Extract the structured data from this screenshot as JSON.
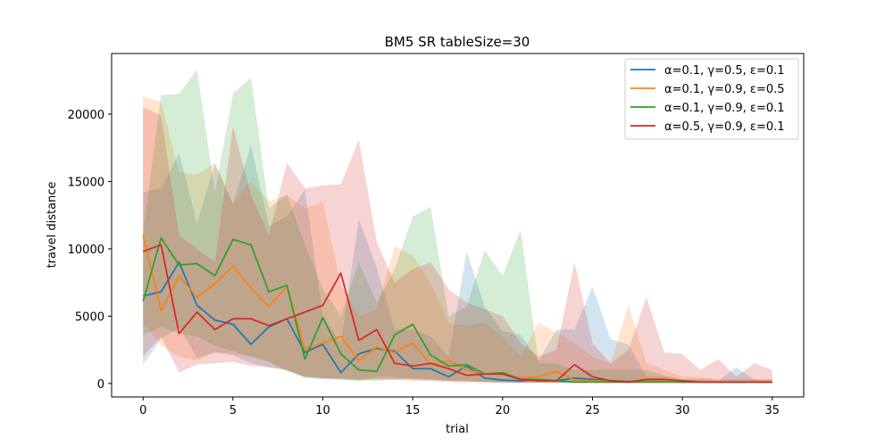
{
  "chart_data": {
    "type": "line",
    "title": "BM5  SR  tableSize=30",
    "xlabel": "trial",
    "ylabel": "travel distance",
    "xlim": [
      -1.75,
      36.75
    ],
    "ylim": [
      -1000,
      24500
    ],
    "xticks": [
      0,
      5,
      10,
      15,
      20,
      25,
      30,
      35
    ],
    "yticks": [
      0,
      5000,
      10000,
      15000,
      20000
    ],
    "legend_position": "top-right",
    "grid": false,
    "x": [
      0,
      1,
      2,
      3,
      4,
      5,
      6,
      7,
      8,
      9,
      10,
      11,
      12,
      13,
      14,
      15,
      16,
      17,
      18,
      19,
      20,
      21,
      22,
      23,
      24,
      25,
      26,
      27,
      28,
      29,
      30,
      31,
      32,
      33,
      34,
      35
    ],
    "series": [
      {
        "name": "α=0.1, γ=0.5, ε=0.1",
        "color": "#1f77b4",
        "mean": [
          6500,
          6800,
          9000,
          5800,
          4700,
          4400,
          2900,
          4200,
          4800,
          2300,
          2900,
          800,
          2200,
          2600,
          2400,
          1100,
          1100,
          500,
          1300,
          400,
          250,
          200,
          300,
          200,
          400,
          300,
          200,
          150,
          150,
          150,
          100,
          100,
          100,
          100,
          100,
          100
        ],
        "upper": [
          14200,
          14500,
          17100,
          11900,
          16300,
          13300,
          17700,
          11700,
          12400,
          14400,
          5000,
          3000,
          12200,
          8600,
          4000,
          4000,
          3500,
          2000,
          9800,
          5700,
          3900,
          3600,
          1700,
          4000,
          4000,
          7200,
          3300,
          2900,
          500,
          500,
          300,
          300,
          200,
          1200,
          300,
          200
        ],
        "lower": [
          1400,
          3300,
          4200,
          1900,
          2300,
          2100,
          1500,
          1200,
          1000,
          400,
          300,
          300,
          200,
          500,
          500,
          300,
          300,
          200,
          200,
          100,
          50,
          50,
          50,
          50,
          50,
          50,
          50,
          50,
          50,
          50,
          50,
          50,
          50,
          50,
          50,
          50
        ]
      },
      {
        "name": "α=0.1, γ=0.9, ε=0.5",
        "color": "#ff7f0e",
        "mean": [
          11000,
          5400,
          8000,
          6400,
          7400,
          8700,
          7100,
          5700,
          7200,
          2500,
          3000,
          3500,
          1700,
          2700,
          2300,
          3000,
          1400,
          1700,
          1000,
          700,
          700,
          400,
          500,
          900,
          250,
          200,
          150,
          100,
          150,
          150,
          100,
          100,
          100,
          100,
          100,
          100
        ],
        "upper": [
          21300,
          20900,
          15700,
          15500,
          16400,
          13400,
          15000,
          13500,
          14000,
          13000,
          13500,
          7300,
          5000,
          5500,
          10200,
          9500,
          7400,
          4500,
          4300,
          4500,
          3500,
          2000,
          4500,
          3800,
          3000,
          2000,
          1500,
          5800,
          1500,
          1000,
          500,
          500,
          300,
          300,
          300,
          300
        ],
        "lower": [
          4500,
          2800,
          2000,
          1700,
          2300,
          2200,
          2000,
          1600,
          1000,
          500,
          400,
          300,
          300,
          300,
          300,
          300,
          200,
          200,
          100,
          100,
          100,
          50,
          50,
          50,
          50,
          50,
          50,
          50,
          50,
          50,
          50,
          50,
          50,
          50,
          50,
          50
        ]
      },
      {
        "name": "α=0.1, γ=0.9, ε=0.1",
        "color": "#2ca02c",
        "mean": [
          6100,
          10800,
          8800,
          8900,
          8000,
          10700,
          10300,
          6800,
          7300,
          1800,
          4900,
          2200,
          1000,
          900,
          3600,
          4400,
          2100,
          1300,
          1400,
          700,
          800,
          300,
          300,
          200,
          100,
          100,
          100,
          100,
          100,
          100,
          100,
          100,
          100,
          100,
          100,
          100
        ],
        "upper": [
          11100,
          21400,
          21500,
          23300,
          14200,
          21500,
          22700,
          13000,
          14000,
          10300,
          7000,
          5000,
          9000,
          6000,
          8500,
          12400,
          13100,
          5000,
          5700,
          9900,
          8000,
          11400,
          1500,
          1500,
          1000,
          1000,
          1000,
          1000,
          1000,
          600,
          300,
          300,
          300,
          300,
          300,
          300
        ],
        "lower": [
          3600,
          4200,
          3700,
          3500,
          2800,
          2400,
          2000,
          1600,
          900,
          500,
          400,
          300,
          200,
          200,
          300,
          400,
          300,
          200,
          200,
          100,
          100,
          50,
          50,
          50,
          50,
          50,
          50,
          50,
          50,
          50,
          50,
          50,
          50,
          50,
          50,
          50
        ]
      },
      {
        "name": "α=0.5, γ=0.9, ε=0.1",
        "color": "#d62728",
        "mean": [
          9800,
          10300,
          3700,
          5300,
          4000,
          4800,
          4800,
          4300,
          4800,
          5300,
          5800,
          8200,
          3200,
          4000,
          1500,
          1300,
          1500,
          1100,
          600,
          700,
          700,
          300,
          200,
          200,
          1400,
          500,
          200,
          100,
          300,
          300,
          200,
          100,
          100,
          100,
          100,
          100
        ],
        "upper": [
          20500,
          19900,
          11000,
          10000,
          9000,
          19100,
          14000,
          11000,
          16400,
          14500,
          14700,
          14800,
          18100,
          10500,
          7500,
          8500,
          9000,
          7000,
          6000,
          5500,
          5000,
          3000,
          2000,
          2500,
          9000,
          3000,
          1500,
          2500,
          6400,
          2300,
          2200,
          1000,
          1800,
          500,
          1500,
          1000
        ],
        "lower": [
          2000,
          3500,
          800,
          1400,
          1500,
          1600,
          1300,
          1200,
          1000,
          500,
          400,
          400,
          300,
          300,
          300,
          200,
          200,
          100,
          100,
          100,
          50,
          50,
          50,
          50,
          50,
          50,
          50,
          50,
          50,
          50,
          50,
          50,
          50,
          50,
          50,
          50
        ]
      }
    ]
  }
}
